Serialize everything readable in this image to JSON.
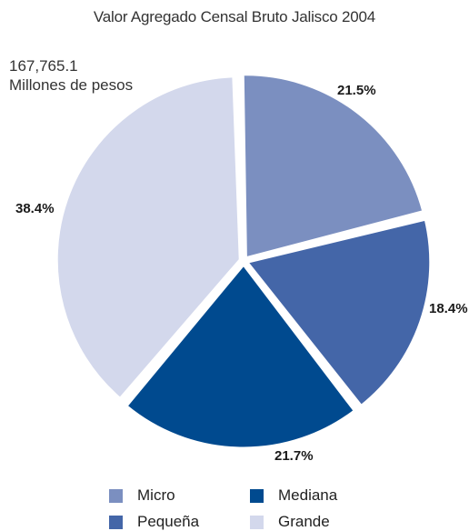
{
  "chart_data": {
    "type": "pie",
    "title": "Valor Agregado Censal Bruto Jalisco 2004",
    "total_label": [
      "167,765.1",
      "Millones de pesos"
    ],
    "slices": [
      {
        "name": "Micro",
        "value": 21.5,
        "label": "21.5%",
        "color": "#7b8fc0"
      },
      {
        "name": "Pequeña",
        "value": 18.4,
        "label": "18.4%",
        "color": "#4466a8"
      },
      {
        "name": "Mediana",
        "value": 21.7,
        "label": "21.7%",
        "color": "#004a8f"
      },
      {
        "name": "Grande",
        "value": 38.4,
        "label": "38.4%",
        "color": "#d3d8ec"
      }
    ],
    "legend_placement": "bottom"
  }
}
